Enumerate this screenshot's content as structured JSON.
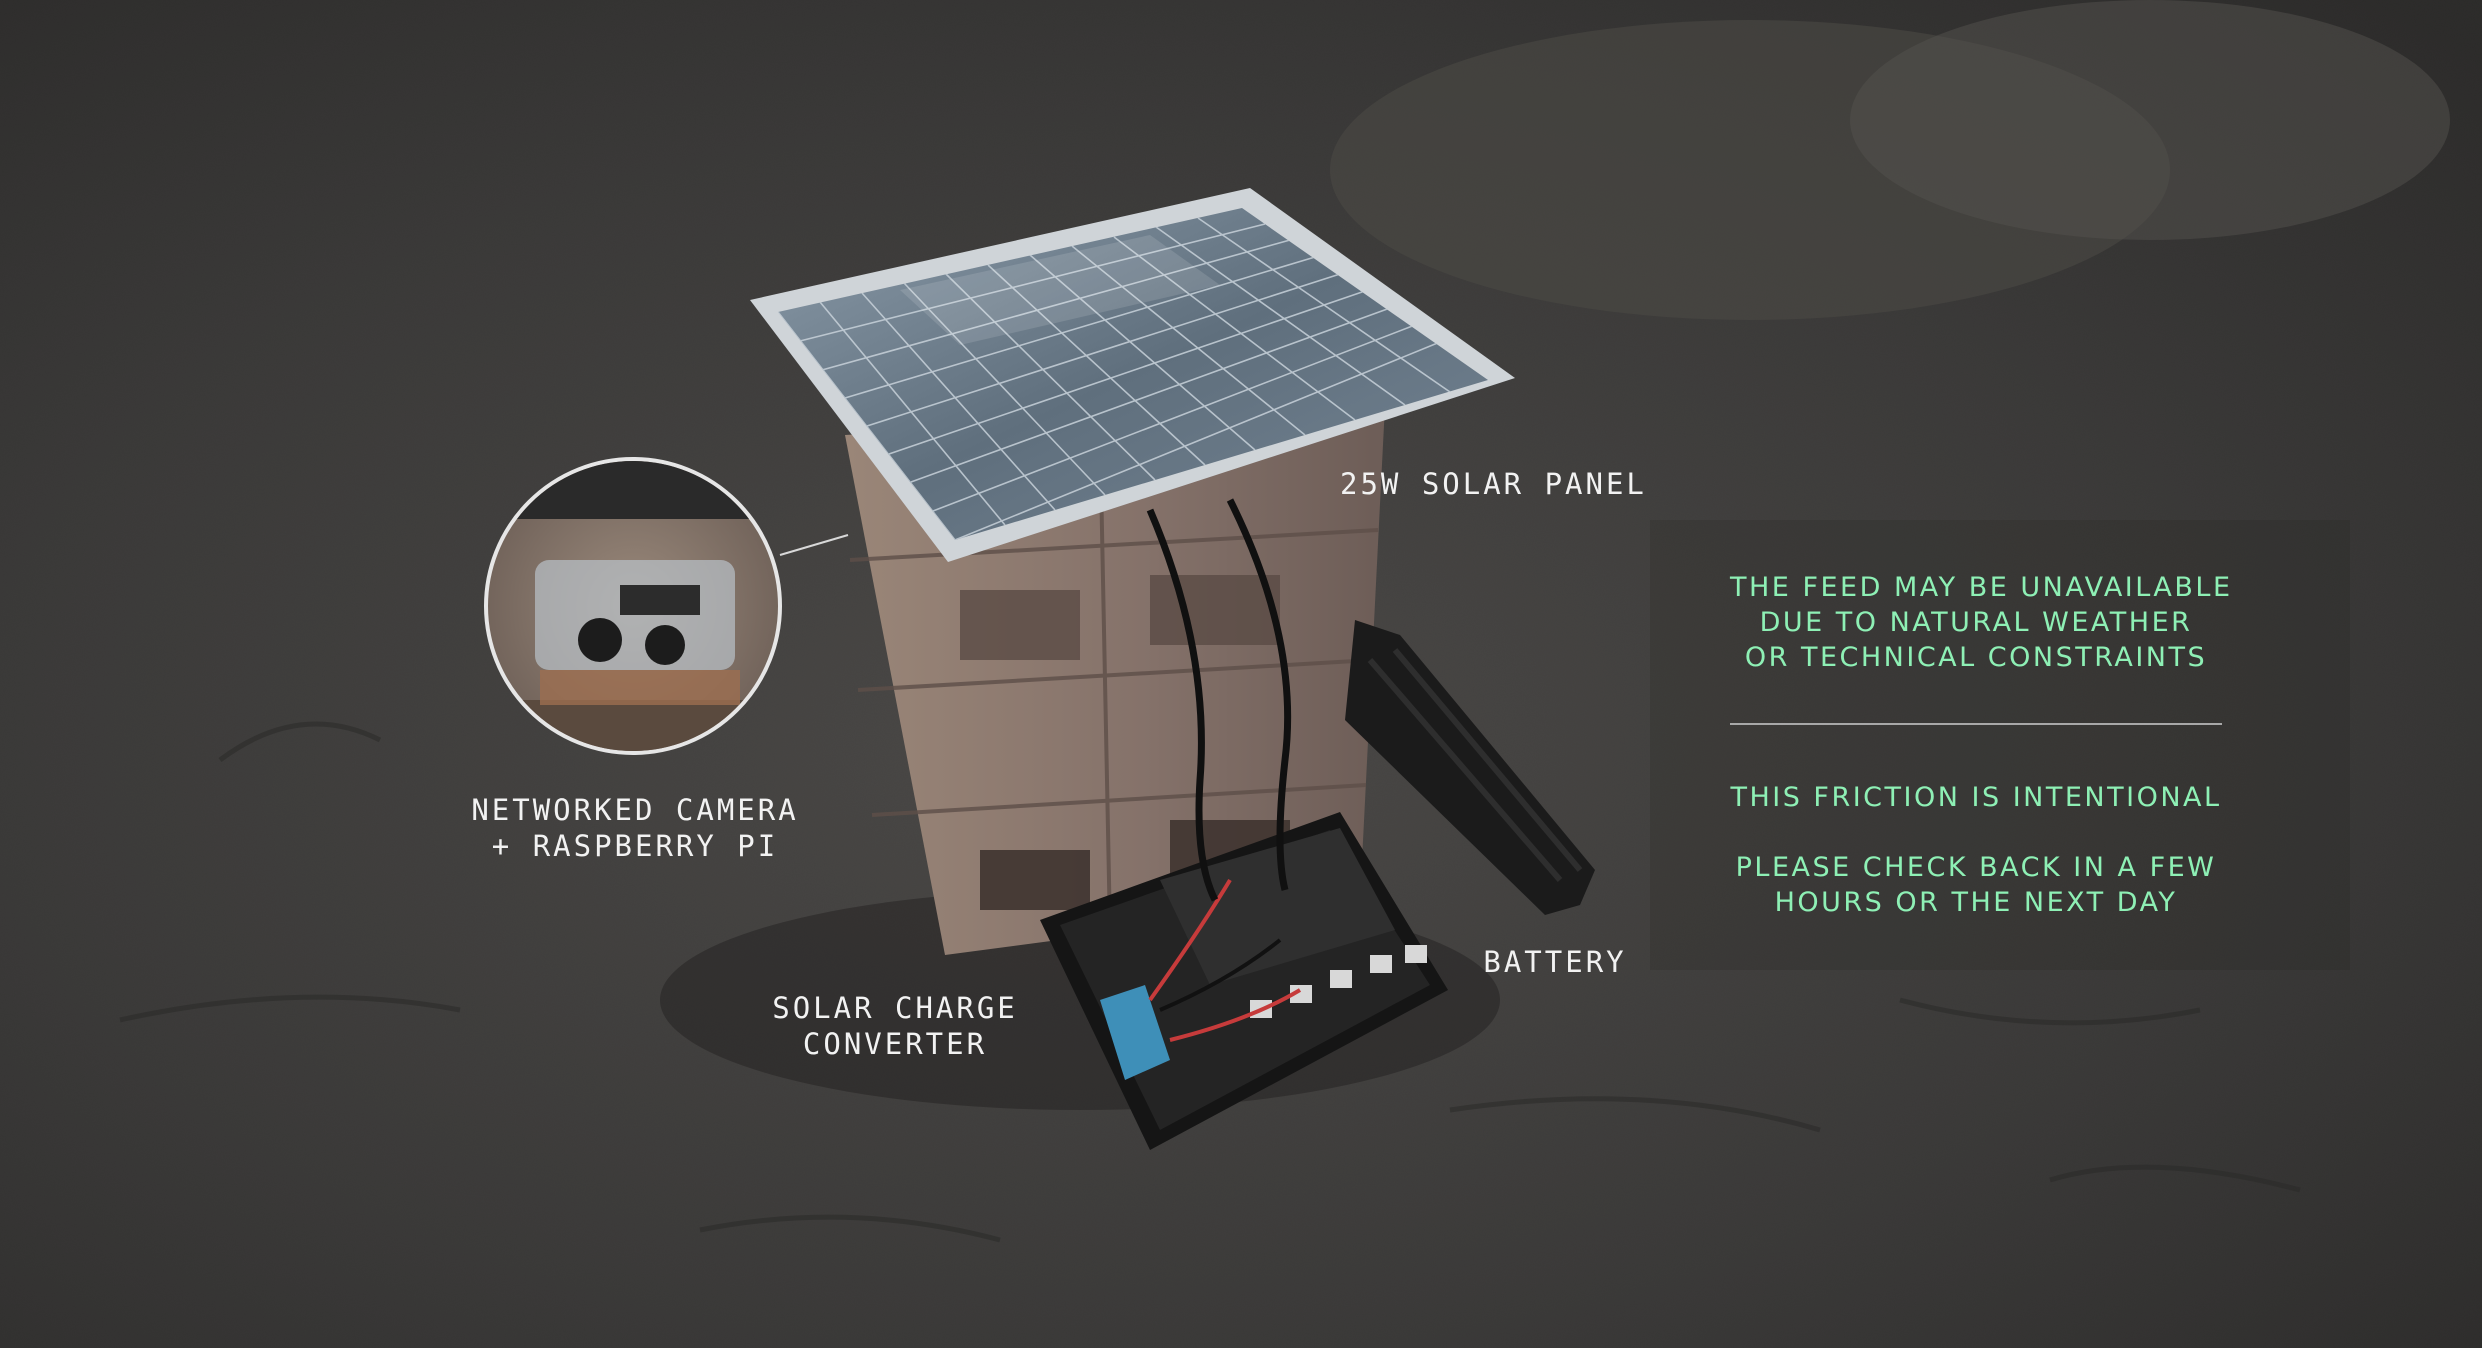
{
  "labels": {
    "solar_panel": "25W SOLAR PANEL",
    "camera_line1": "NETWORKED CAMERA",
    "camera_line2": "+ RASPBERRY PI",
    "charge_line1": "SOLAR CHARGE",
    "charge_line2": "CONVERTER",
    "battery": "BATTERY"
  },
  "notice": {
    "block1": [
      "THE FEED MAY BE UNAVAILABLE",
      "DUE TO NATURAL WEATHER",
      "OR TECHNICAL CONSTRAINTS"
    ],
    "block2": "THIS FRICTION IS INTENTIONAL",
    "block3": [
      "PLEASE CHECK BACK IN A FEW",
      "HOURS OR THE NEXT DAY"
    ]
  },
  "colors": {
    "notice_text": "#8ef0b5",
    "label_text": "#f2f2f2",
    "ground": "#3a3938",
    "panel_frame": "#c9ced3",
    "panel_cells": "#6a7a88",
    "brick": "#8e7a6e",
    "enclosure": "#1d1d1d"
  }
}
